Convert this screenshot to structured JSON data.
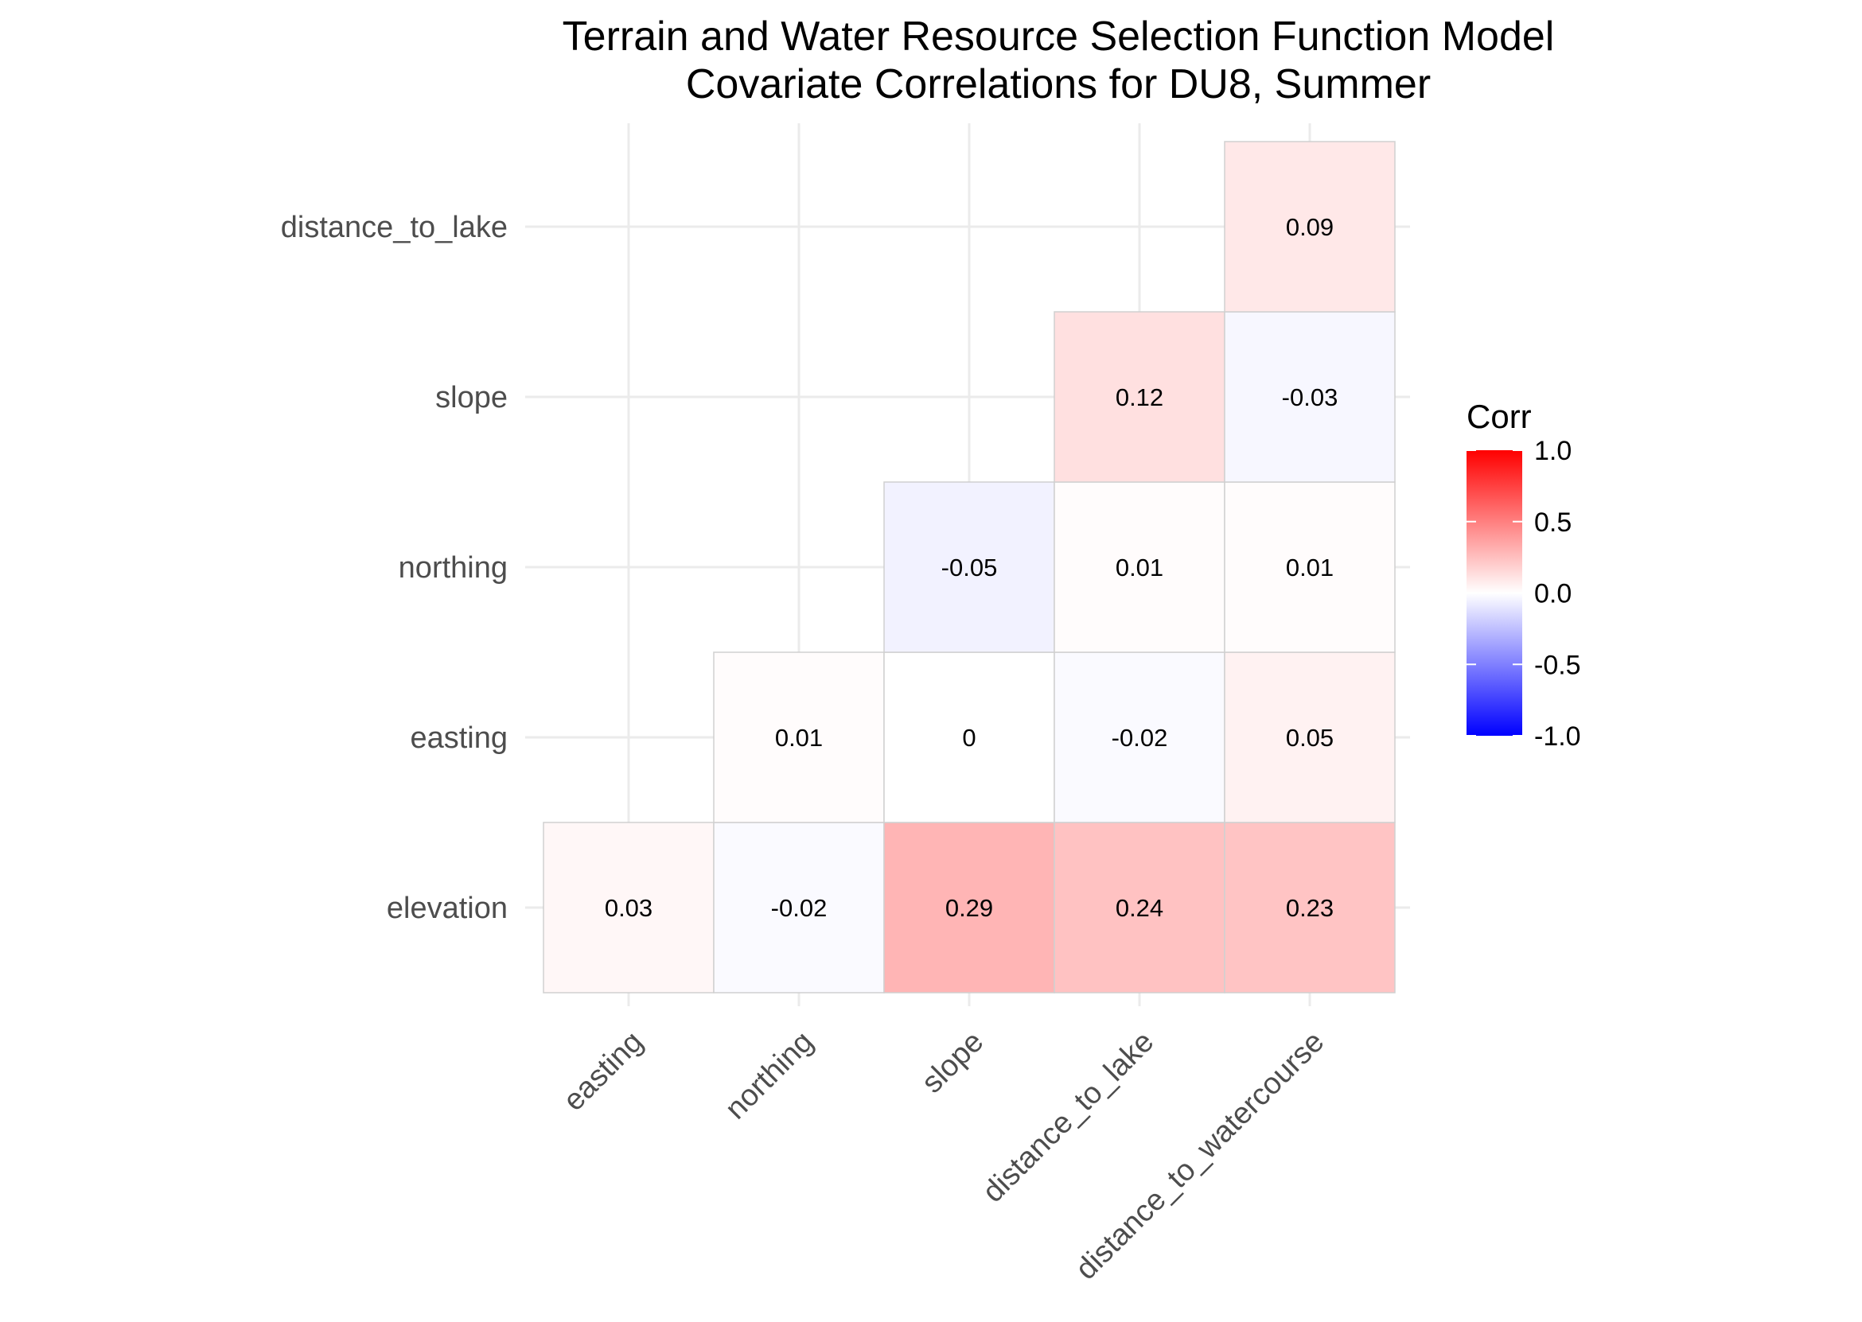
{
  "chart_data": {
    "type": "heatmap",
    "title": "Terrain and Water Resource Selection Function Model",
    "subtitle": "Covariate Correlations for DU8, Summer",
    "x_categories": [
      "easting",
      "northing",
      "slope",
      "distance_to_lake",
      "distance_to_watercourse"
    ],
    "y_categories": [
      "elevation",
      "easting",
      "northing",
      "slope",
      "distance_to_lake"
    ],
    "cells": [
      {
        "x": "easting",
        "y": "elevation",
        "value": 0.03,
        "label": "0.03"
      },
      {
        "x": "northing",
        "y": "elevation",
        "value": -0.02,
        "label": "-0.02"
      },
      {
        "x": "slope",
        "y": "elevation",
        "value": 0.29,
        "label": "0.29"
      },
      {
        "x": "distance_to_lake",
        "y": "elevation",
        "value": 0.24,
        "label": "0.24"
      },
      {
        "x": "distance_to_watercourse",
        "y": "elevation",
        "value": 0.23,
        "label": "0.23"
      },
      {
        "x": "northing",
        "y": "easting",
        "value": 0.01,
        "label": "0.01"
      },
      {
        "x": "slope",
        "y": "easting",
        "value": 0,
        "label": "0"
      },
      {
        "x": "distance_to_lake",
        "y": "easting",
        "value": -0.02,
        "label": "-0.02"
      },
      {
        "x": "distance_to_watercourse",
        "y": "easting",
        "value": 0.05,
        "label": "0.05"
      },
      {
        "x": "slope",
        "y": "northing",
        "value": -0.05,
        "label": "-0.05"
      },
      {
        "x": "distance_to_lake",
        "y": "northing",
        "value": 0.01,
        "label": "0.01"
      },
      {
        "x": "distance_to_watercourse",
        "y": "northing",
        "value": 0.01,
        "label": "0.01"
      },
      {
        "x": "distance_to_lake",
        "y": "slope",
        "value": 0.12,
        "label": "0.12"
      },
      {
        "x": "distance_to_watercourse",
        "y": "slope",
        "value": -0.03,
        "label": "-0.03"
      },
      {
        "x": "distance_to_watercourse",
        "y": "distance_to_lake",
        "value": 0.09,
        "label": "0.09"
      }
    ],
    "legend": {
      "title": "Corr",
      "placement": "right",
      "range": [
        -1.0,
        1.0
      ],
      "ticks": [
        "1.0",
        "0.5",
        "0.0",
        "-0.5",
        "-1.0"
      ],
      "colors": {
        "low": "#0000ff",
        "mid": "#ffffff",
        "high": "#ff0000"
      }
    },
    "grid": true
  }
}
